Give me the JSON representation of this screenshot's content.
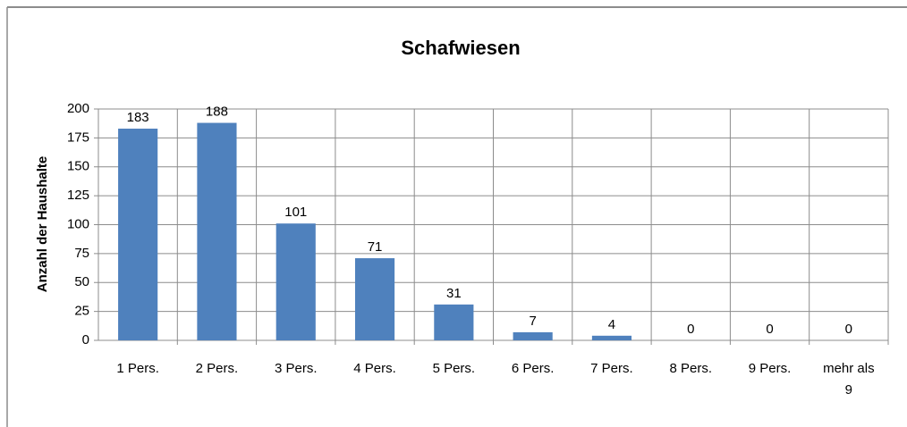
{
  "chart_data": {
    "type": "bar",
    "title": "Schafwiesen",
    "y_label": "Anzahl der Haushalte",
    "categories": [
      "1 Pers.",
      "2 Pers.",
      "3 Pers.",
      "4 Pers.",
      "5 Pers.",
      "6 Pers.",
      "7 Pers.",
      "8 Pers.",
      "9 Pers.",
      "mehr als 9"
    ],
    "values": [
      183,
      188,
      101,
      71,
      31,
      7,
      4,
      0,
      0,
      0
    ],
    "color": "#4f81bd",
    "ylim": [
      0,
      200
    ],
    "yticks": [
      0,
      25,
      50,
      75,
      100,
      125,
      150,
      175,
      200
    ],
    "grid": true
  }
}
